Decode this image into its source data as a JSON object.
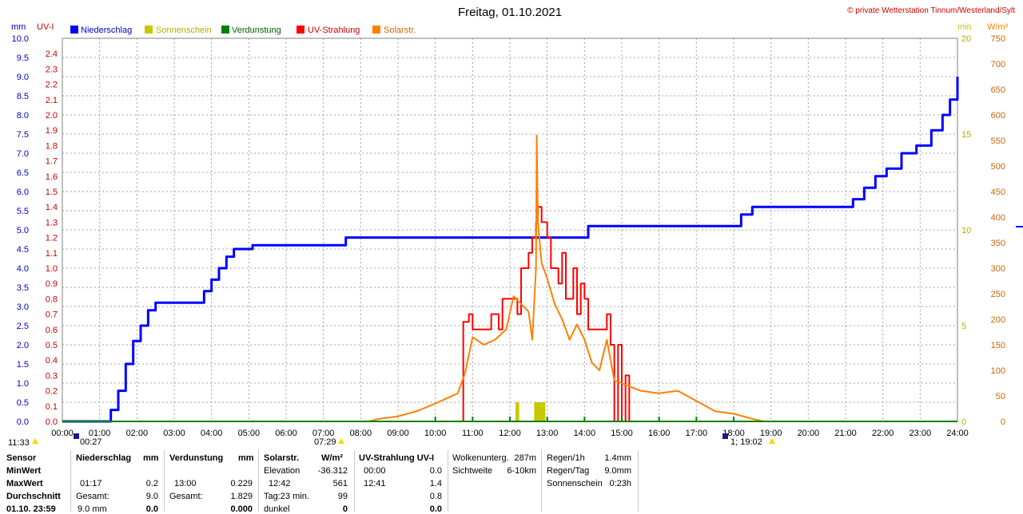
{
  "header": {
    "title": "Freitag, 01.10.2021",
    "copyright": "© private Wetterstation Tinnum/Westerland/Sylt"
  },
  "colors": {
    "niederschlag": "#0000ff",
    "sonnenschein": "#c8c800",
    "verdunstung": "#008000",
    "uv": "#ff0000",
    "solar": "#ff8000",
    "grid": "#a0a0a0"
  },
  "chart_data": {
    "type": "line",
    "x_range": [
      "00:00",
      "24:00"
    ],
    "x_ticks": [
      "00:00",
      "01:00",
      "02:00",
      "03:00",
      "04:00",
      "05:00",
      "06:00",
      "07:00",
      "08:00",
      "09:00",
      "10:00",
      "11:00",
      "12:00",
      "13:00",
      "14:00",
      "15:00",
      "16:00",
      "17:00",
      "18:00",
      "19:00",
      "20:00",
      "21:00",
      "22:00",
      "23:00",
      "24:00"
    ],
    "axes": {
      "mm": {
        "unit": "mm",
        "range": [
          0,
          10
        ],
        "ticks": [
          "0.0",
          "0.5",
          "1.0",
          "1.5",
          "2.0",
          "2.5",
          "3.0",
          "3.5",
          "4.0",
          "4.5",
          "5.0",
          "5.5",
          "6.0",
          "6.5",
          "7.0",
          "7.5",
          "8.0",
          "8.5",
          "9.0",
          "9.5",
          "10.0"
        ]
      },
      "uv": {
        "unit": "UV-I",
        "range": [
          0,
          2.5
        ],
        "ticks": [
          "0.0",
          "0.1",
          "0.2",
          "0.3",
          "0.4",
          "0.5",
          "0.6",
          "0.7",
          "0.8",
          "0.9",
          "1.0",
          "1.1",
          "1.2",
          "1.3",
          "1.4",
          "1.5",
          "1.6",
          "1.7",
          "1.8",
          "1.9",
          "2.0",
          "2.1",
          "2.2",
          "2.3",
          "2.4"
        ]
      },
      "min": {
        "unit": "min",
        "range": [
          0,
          20
        ],
        "ticks": [
          "0",
          "5",
          "10",
          "15",
          "20"
        ]
      },
      "wm2": {
        "unit": "W/m²",
        "range": [
          0,
          750
        ],
        "ticks": [
          "0",
          "50",
          "100",
          "150",
          "200",
          "250",
          "300",
          "350",
          "400",
          "450",
          "500",
          "550",
          "600",
          "650",
          "700",
          "750"
        ]
      }
    },
    "legend": [
      "Niederschlag",
      "Sonnenschein",
      "Verdunstung",
      "UV-Strahlung",
      "Solarstr."
    ],
    "series": [
      {
        "name": "Niederschlag",
        "axis": "mm",
        "points": [
          [
            0,
            0
          ],
          [
            1.2,
            0
          ],
          [
            1.3,
            0.3
          ],
          [
            1.5,
            0.8
          ],
          [
            1.7,
            1.5
          ],
          [
            1.9,
            2.1
          ],
          [
            2.1,
            2.5
          ],
          [
            2.3,
            2.9
          ],
          [
            2.5,
            3.1
          ],
          [
            3.1,
            3.1
          ],
          [
            3.6,
            3.1
          ],
          [
            3.8,
            3.4
          ],
          [
            4.0,
            3.7
          ],
          [
            4.2,
            4.0
          ],
          [
            4.4,
            4.3
          ],
          [
            4.6,
            4.5
          ],
          [
            5.0,
            4.5
          ],
          [
            5.1,
            4.6
          ],
          [
            7.5,
            4.6
          ],
          [
            7.6,
            4.8
          ],
          [
            11,
            4.8
          ],
          [
            12,
            4.8
          ],
          [
            14,
            4.8
          ],
          [
            14.1,
            5.1
          ],
          [
            15,
            5.1
          ],
          [
            18,
            5.1
          ],
          [
            18.2,
            5.4
          ],
          [
            18.5,
            5.6
          ],
          [
            20,
            5.6
          ],
          [
            21.0,
            5.6
          ],
          [
            21.2,
            5.8
          ],
          [
            21.5,
            6.1
          ],
          [
            21.8,
            6.4
          ],
          [
            22.1,
            6.6
          ],
          [
            22.5,
            7.0
          ],
          [
            22.9,
            7.2
          ],
          [
            23.3,
            7.6
          ],
          [
            23.6,
            8.0
          ],
          [
            23.8,
            8.4
          ],
          [
            24.0,
            9.0
          ]
        ]
      },
      {
        "name": "UV-Strahlung",
        "axis": "uv",
        "points": [
          [
            10.7,
            0
          ],
          [
            10.75,
            0.65
          ],
          [
            10.9,
            0.7
          ],
          [
            11.0,
            0.6
          ],
          [
            11.3,
            0.6
          ],
          [
            11.5,
            0.7
          ],
          [
            11.7,
            0.6
          ],
          [
            11.8,
            0.8
          ],
          [
            12.0,
            0.8
          ],
          [
            12.2,
            0.7
          ],
          [
            12.3,
            1.0
          ],
          [
            12.5,
            1.1
          ],
          [
            12.6,
            1.2
          ],
          [
            12.7,
            1.3
          ],
          [
            12.75,
            1.4
          ],
          [
            12.85,
            1.3
          ],
          [
            13.0,
            1.2
          ],
          [
            13.1,
            1.0
          ],
          [
            13.3,
            0.9
          ],
          [
            13.4,
            1.1
          ],
          [
            13.5,
            0.8
          ],
          [
            13.7,
            1.0
          ],
          [
            13.8,
            0.7
          ],
          [
            13.9,
            0.9
          ],
          [
            14.0,
            0.8
          ],
          [
            14.1,
            0.6
          ],
          [
            14.3,
            0.6
          ],
          [
            14.5,
            0.6
          ],
          [
            14.6,
            0.7
          ],
          [
            14.7,
            0.5
          ],
          [
            14.8,
            0.0
          ],
          [
            14.9,
            0.5
          ],
          [
            15.0,
            0.0
          ],
          [
            15.1,
            0.3
          ],
          [
            15.2,
            0.0
          ]
        ]
      },
      {
        "name": "Solarstr.",
        "axis": "wm2",
        "points": [
          [
            8.2,
            0
          ],
          [
            8.5,
            5
          ],
          [
            9.0,
            10
          ],
          [
            9.5,
            20
          ],
          [
            10.0,
            35
          ],
          [
            10.3,
            45
          ],
          [
            10.6,
            55
          ],
          [
            10.8,
            95
          ],
          [
            11.0,
            165
          ],
          [
            11.3,
            150
          ],
          [
            11.6,
            160
          ],
          [
            11.9,
            180
          ],
          [
            12.1,
            245
          ],
          [
            12.3,
            230
          ],
          [
            12.5,
            215
          ],
          [
            12.6,
            160
          ],
          [
            12.7,
            300
          ],
          [
            12.72,
            560
          ],
          [
            12.75,
            390
          ],
          [
            12.85,
            310
          ],
          [
            13.0,
            280
          ],
          [
            13.2,
            230
          ],
          [
            13.4,
            200
          ],
          [
            13.6,
            160
          ],
          [
            13.8,
            190
          ],
          [
            14.0,
            160
          ],
          [
            14.2,
            115
          ],
          [
            14.4,
            100
          ],
          [
            14.6,
            160
          ],
          [
            14.8,
            80
          ],
          [
            15.0,
            75
          ],
          [
            15.5,
            60
          ],
          [
            16.0,
            55
          ],
          [
            16.5,
            60
          ],
          [
            17.0,
            40
          ],
          [
            17.5,
            20
          ],
          [
            18.0,
            15
          ],
          [
            18.5,
            5
          ],
          [
            18.8,
            0
          ]
        ]
      },
      {
        "name": "Sonnenschein",
        "axis": "min",
        "points": [
          [
            12.15,
            1
          ],
          [
            12.25,
            1
          ],
          [
            12.65,
            1
          ],
          [
            12.95,
            1
          ]
        ]
      },
      {
        "name": "Verdunstung",
        "axis": "mm",
        "points": [
          [
            0,
            0
          ],
          [
            24,
            0
          ]
        ]
      }
    ],
    "markers": {
      "left_time": "11:33",
      "sunrise": "00:27",
      "dawn": "07:29",
      "sunset_label": "1;  19:02"
    },
    "grid": true
  },
  "stats": {
    "headers": {
      "sensor": "Sensor",
      "niederschlag": "Niederschlag",
      "mm": "mm",
      "verdunstung": "Verdunstung",
      "mm2": "mm",
      "solar": "Solarstr.",
      "wm2": "W/m²",
      "uv": "UV-Strahlung UV-I"
    },
    "rows": [
      {
        "label": "MinWert",
        "n_time": "",
        "n_val": "",
        "v_time": "",
        "v_val": "",
        "s_label": "Elevation",
        "s_val": "-36.312",
        "uv_time": "00:00",
        "uv_val": "0.0"
      },
      {
        "label": "MaxWert",
        "n_time": "01:17",
        "n_val": "0.2",
        "v_time": "13:00",
        "v_val": "0.229",
        "s_label": "12:42",
        "s_val": "561",
        "uv_time": "12:41",
        "uv_val": "1.4"
      },
      {
        "label": "Durchschnitt",
        "n_time": "Gesamt:",
        "n_val": "9.0",
        "v_time": "Gesamt:",
        "v_val": "1.829",
        "s_label": "Tag:23 min.",
        "s_val": "99",
        "uv_time": "",
        "uv_val": "0.8"
      },
      {
        "label": "01.10. 23:59",
        "n_time": "9.0 mm",
        "n_val": "0.0",
        "v_time": "",
        "v_val": "0.000",
        "s_label": "dunkel",
        "s_val": "0",
        "uv_time": "",
        "uv_val": "0.0"
      }
    ],
    "extra1": [
      {
        "label": "Wolkenunterg.",
        "val": "287m"
      },
      {
        "label": "Sichtweite",
        "val": "6-10km"
      }
    ],
    "extra2": [
      {
        "label": "Regen/1h",
        "val": "1.4mm"
      },
      {
        "label": "Regen/Tag",
        "val": "9.0mm"
      },
      {
        "label": "Sonnenschein",
        "val": "0:23h"
      }
    ]
  }
}
